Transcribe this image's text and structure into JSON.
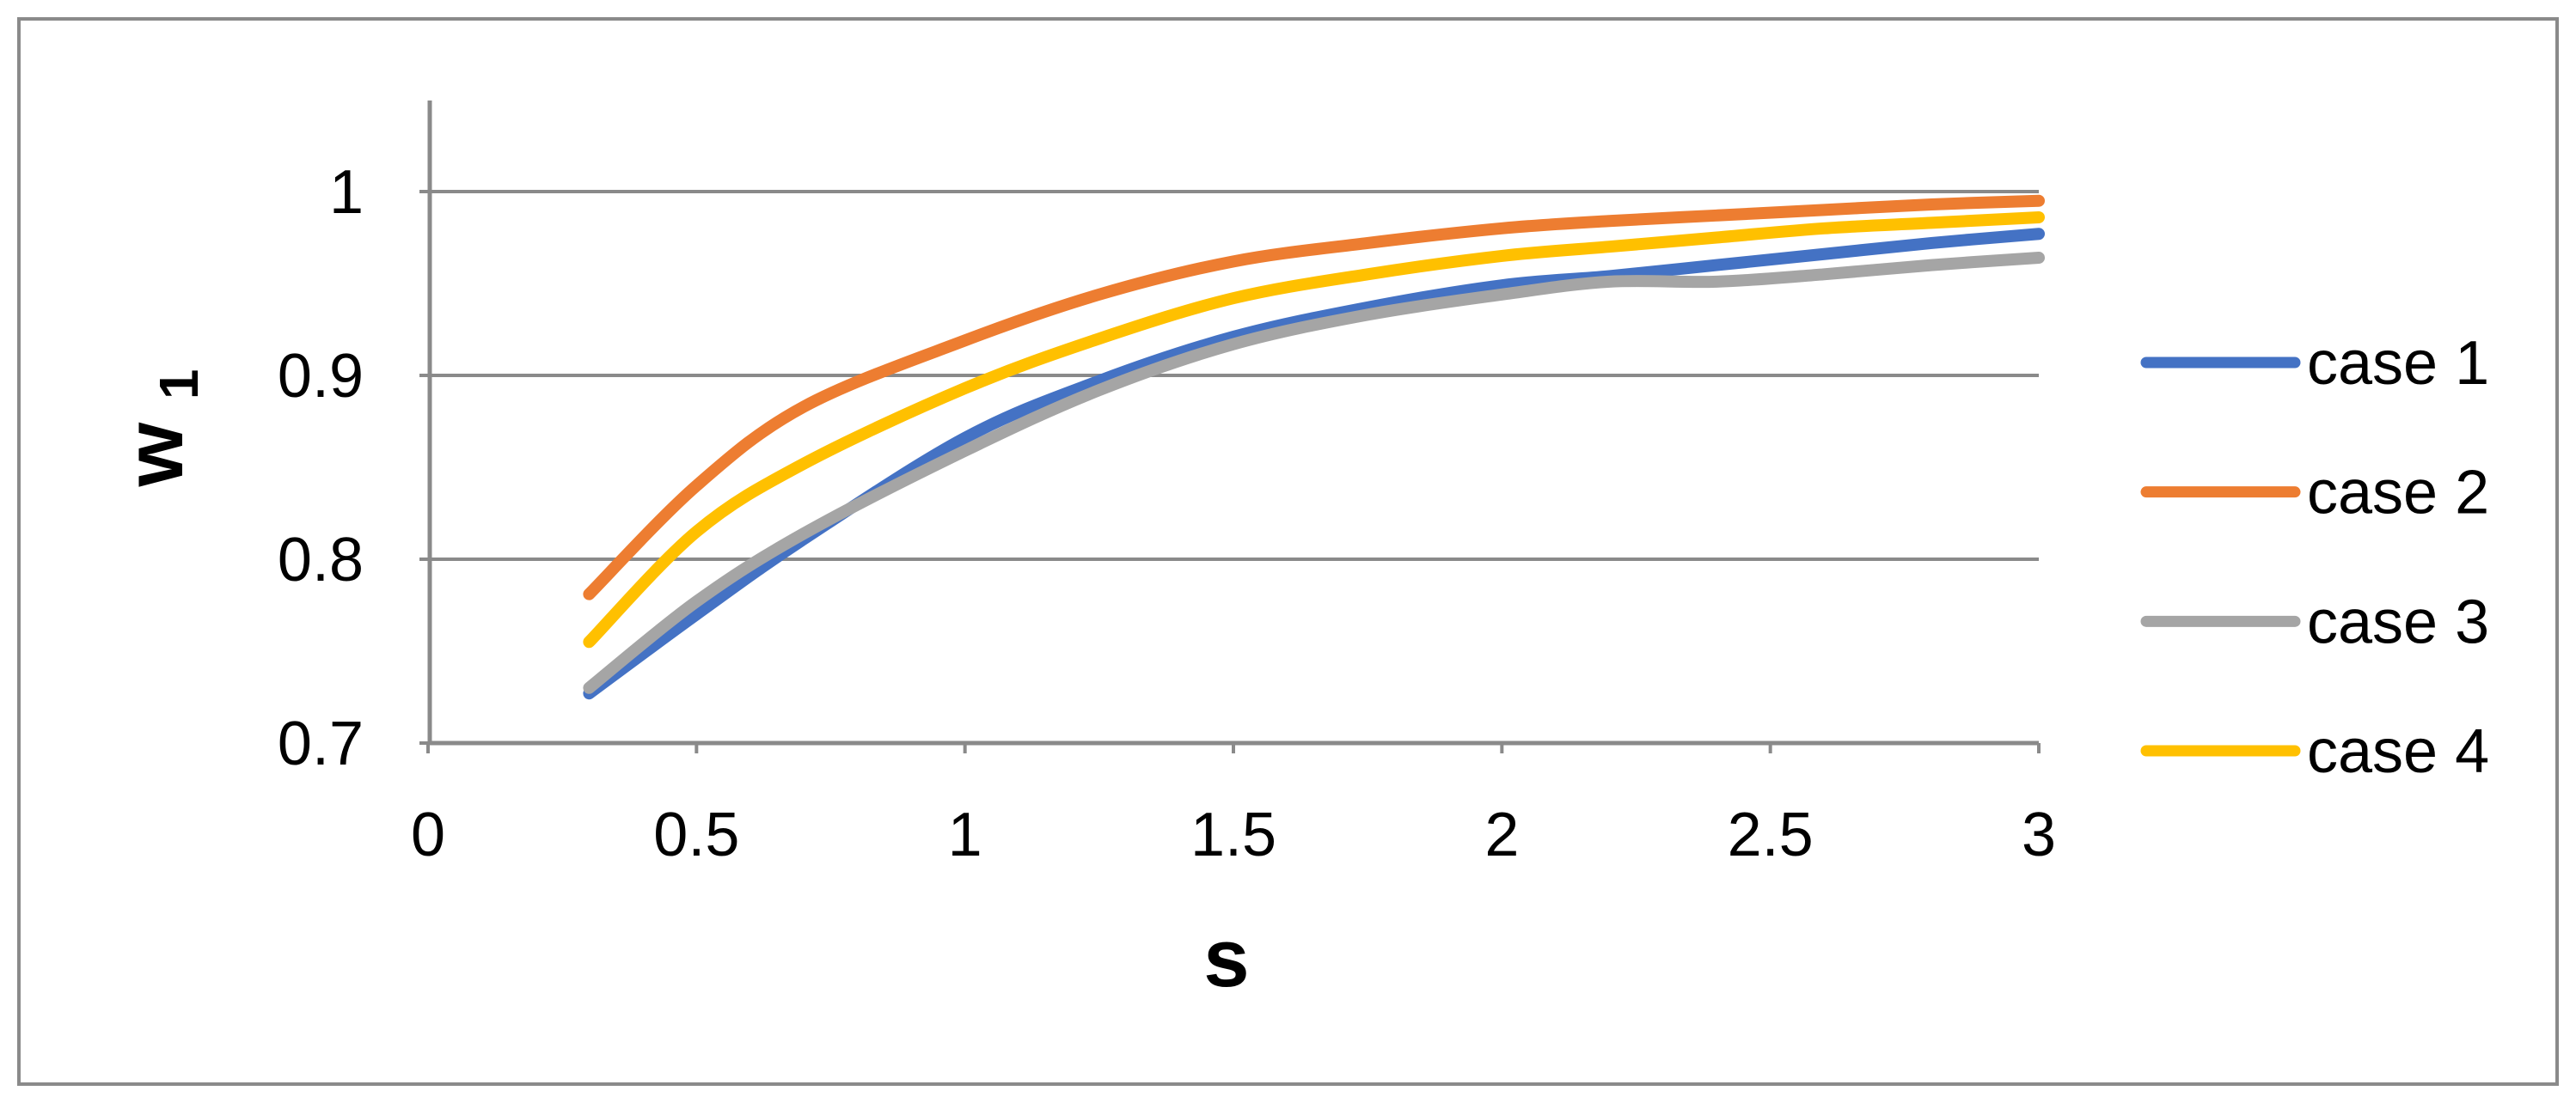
{
  "chart_data": {
    "type": "line",
    "title": "",
    "xlabel": "s",
    "ylabel": "w_1",
    "ylabel_main": "w",
    "ylabel_sub": "1",
    "x": [
      0.3,
      0.5,
      0.7,
      1.0,
      1.25,
      1.5,
      1.75,
      2.0,
      2.2,
      2.4,
      2.6,
      2.8,
      3.0
    ],
    "series": [
      {
        "name": "case 1",
        "color": "#4472C4",
        "values": [
          0.727,
          0.77,
          0.811,
          0.866,
          0.897,
          0.921,
          0.937,
          0.949,
          0.954,
          0.96,
          0.966,
          0.972,
          0.977
        ]
      },
      {
        "name": "case 2",
        "color": "#ED7D31",
        "values": [
          0.781,
          0.84,
          0.883,
          0.919,
          0.944,
          0.962,
          0.972,
          0.98,
          0.984,
          0.987,
          0.99,
          0.993,
          0.995
        ]
      },
      {
        "name": "case 3",
        "color": "#A5A5A5",
        "values": [
          0.73,
          0.777,
          0.814,
          0.859,
          0.892,
          0.917,
          0.933,
          0.944,
          0.951,
          0.951,
          0.955,
          0.96,
          0.964
        ]
      },
      {
        "name": "case 4",
        "color": "#FFC000",
        "values": [
          0.755,
          0.815,
          0.852,
          0.893,
          0.92,
          0.942,
          0.955,
          0.965,
          0.97,
          0.975,
          0.98,
          0.983,
          0.986
        ]
      }
    ],
    "xlim": [
      0,
      3
    ],
    "ylim": [
      0.7,
      1.05
    ],
    "x_ticks": [
      0,
      0.5,
      1,
      1.5,
      2,
      2.5,
      3
    ],
    "x_tick_labels": [
      "0",
      "0.5",
      "1",
      "1.5",
      "2",
      "2.5",
      "3"
    ],
    "y_ticks": [
      0.7,
      0.8,
      0.9,
      1
    ],
    "y_tick_labels": [
      "0.7",
      "0.8",
      "0.9",
      "1"
    ],
    "grid": "horizontal",
    "legend_position": "right",
    "legend_entries": [
      "case 1",
      "case 2",
      "case 3",
      "case 4"
    ],
    "colors": {
      "axis": "#8A8A8A",
      "gridline": "#8A8A8A",
      "border": "#8A8A8A",
      "text": "#000000"
    }
  }
}
